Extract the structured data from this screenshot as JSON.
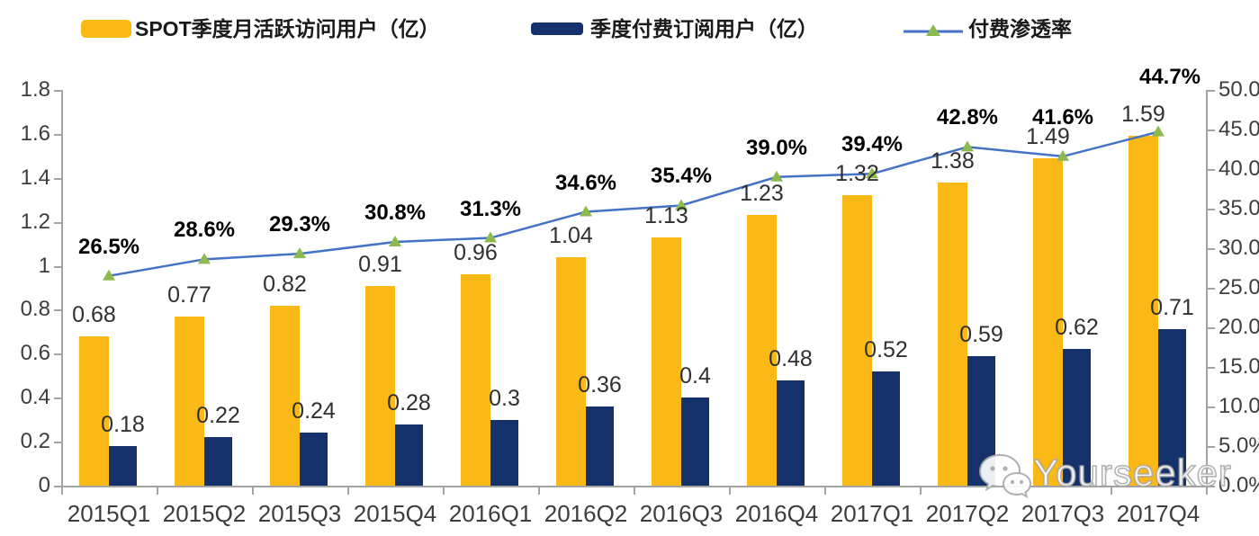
{
  "legend": {
    "items": [
      {
        "label": "SPOT季度月活跃访问用户（亿）",
        "swatch": "bar",
        "color": "#FBB917"
      },
      {
        "label": "季度付费订阅用户（亿）",
        "swatch": "bar",
        "color": "#15316B"
      },
      {
        "label": "付费渗透率",
        "swatch": "line",
        "color": "#4472C4",
        "marker_color": "#8DBA4E"
      }
    ]
  },
  "chart_data": {
    "type": "bar",
    "subtype": "combo-bar-line-dual-axis",
    "categories": [
      "2015Q1",
      "2015Q2",
      "2015Q3",
      "2015Q4",
      "2016Q1",
      "2016Q2",
      "2016Q3",
      "2016Q4",
      "2017Q1",
      "2017Q2",
      "2017Q3",
      "2017Q4"
    ],
    "series": [
      {
        "name": "SPOT季度月活跃访问用户（亿）",
        "type": "bar",
        "axis": "left",
        "color": "#FBB917",
        "values": [
          0.68,
          0.77,
          0.82,
          0.91,
          0.96,
          1.04,
          1.13,
          1.23,
          1.32,
          1.38,
          1.49,
          1.59
        ],
        "labels": [
          "0.68",
          "0.77",
          "0.82",
          "0.91",
          "0.96",
          "1.04",
          "1.13",
          "1.23",
          "1.32",
          "1.38",
          "1.49",
          "1.59"
        ]
      },
      {
        "name": "季度付费订阅用户（亿）",
        "type": "bar",
        "axis": "left",
        "color": "#15316B",
        "values": [
          0.18,
          0.22,
          0.24,
          0.28,
          0.3,
          0.36,
          0.4,
          0.48,
          0.52,
          0.59,
          0.62,
          0.71
        ],
        "labels": [
          "0.18",
          "0.22",
          "0.24",
          "0.28",
          "0.3",
          "0.36",
          "0.4",
          "0.48",
          "0.52",
          "0.59",
          "0.62",
          "0.71"
        ]
      },
      {
        "name": "付费渗透率",
        "type": "line",
        "axis": "right",
        "color": "#4472C4",
        "marker": "triangle",
        "marker_color": "#8DBA4E",
        "values": [
          26.5,
          28.6,
          29.3,
          30.8,
          31.3,
          34.6,
          35.4,
          39.0,
          39.4,
          42.8,
          41.6,
          44.7
        ],
        "labels": [
          "26.5%",
          "28.6%",
          "29.3%",
          "30.8%",
          "31.3%",
          "34.6%",
          "35.4%",
          "39.0%",
          "39.4%",
          "42.8%",
          "41.6%",
          "44.7%"
        ],
        "label_offsets": [
          [
            0,
            0
          ],
          [
            0,
            0
          ],
          [
            0,
            0
          ],
          [
            0,
            0
          ],
          [
            0,
            0
          ],
          [
            0,
            0
          ],
          [
            0,
            0
          ],
          [
            0,
            0
          ],
          [
            0,
            0
          ],
          [
            0,
            0
          ],
          [
            0,
            -11
          ],
          [
            13,
            -29
          ]
        ]
      }
    ],
    "left_axis": {
      "min": 0,
      "max": 1.8,
      "tick_labels": [
        "0",
        "0.2",
        "0.4",
        "0.6",
        "0.8",
        "1",
        "1.2",
        "1.4",
        "1.6",
        "1.8"
      ]
    },
    "right_axis": {
      "min": 0,
      "max": 50,
      "tick_labels": [
        "0.0%",
        "5.0%",
        "10.0%",
        "15.0%",
        "20.0%",
        "25.0%",
        "30.0%",
        "35.0%",
        "40.0%",
        "45.0%",
        "50.0%"
      ]
    },
    "grid": false,
    "legend_position": "top",
    "title": ""
  },
  "watermark": {
    "text": "Yourseeker",
    "icon": "wechat-icon"
  }
}
